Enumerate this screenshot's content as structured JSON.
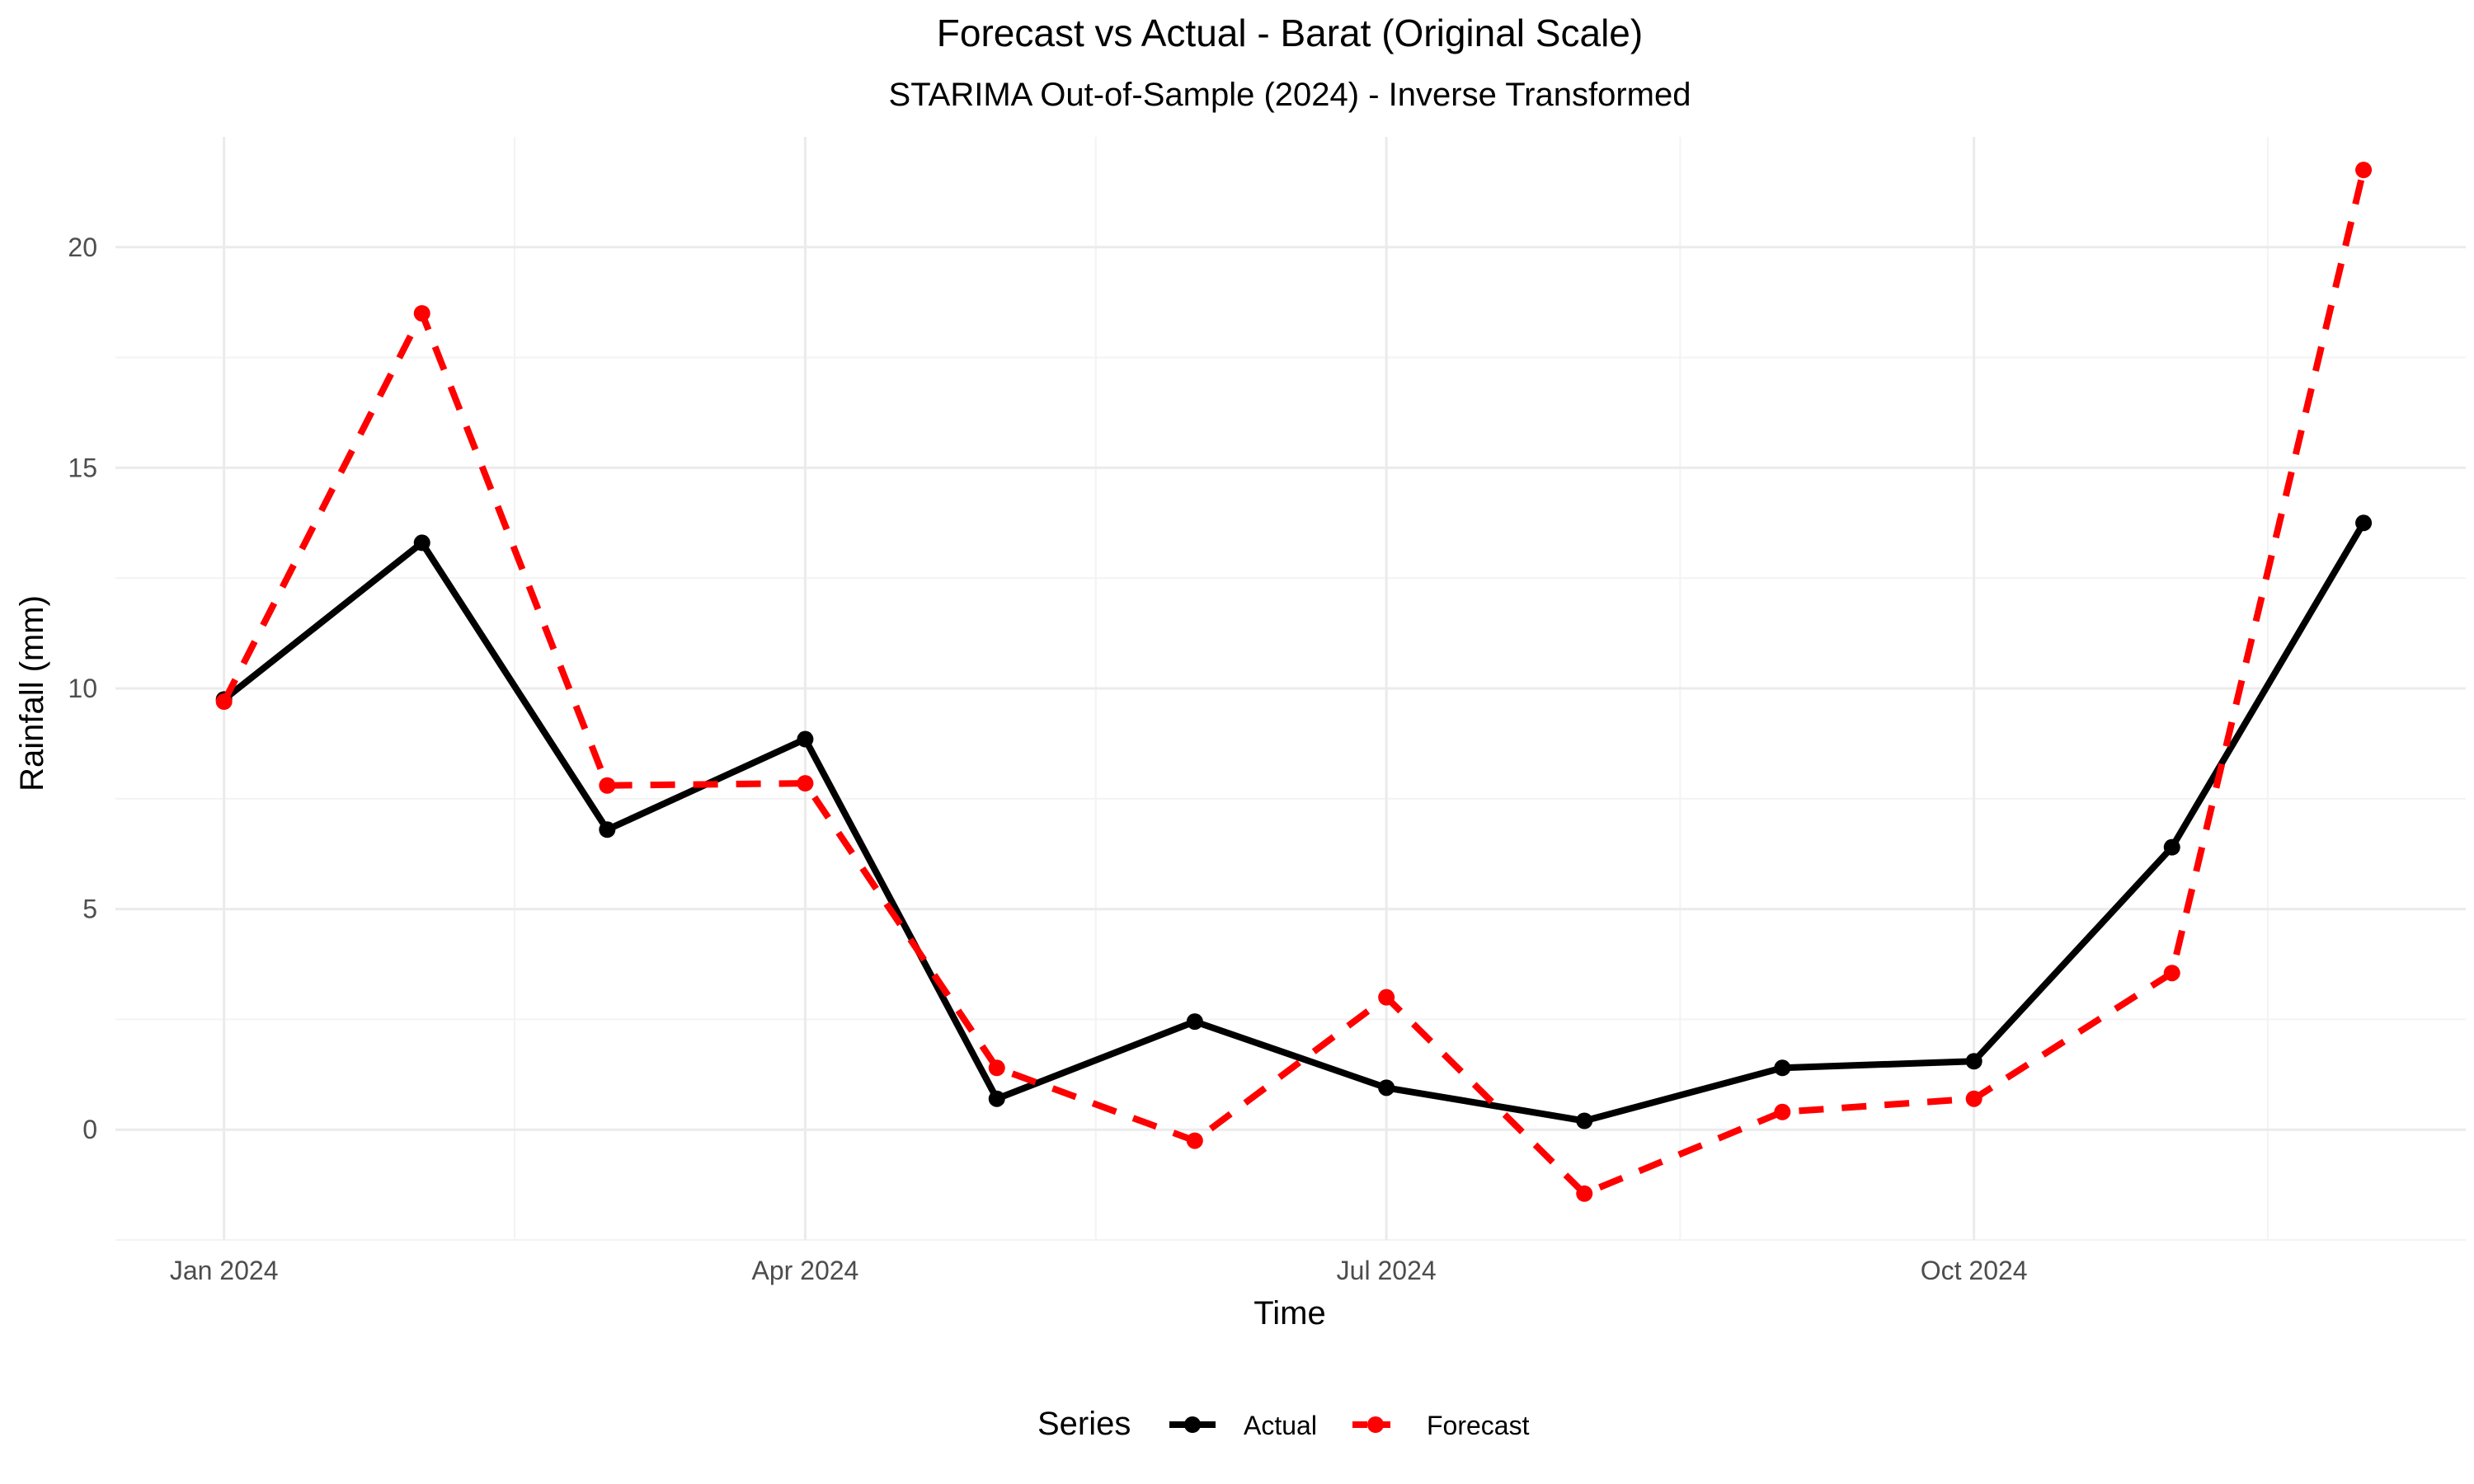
{
  "chart_data": {
    "type": "line",
    "title": "Forecast vs Actual - Barat (Original Scale)",
    "subtitle": "STARIMA Out-of-Sample (2024) - Inverse Transformed",
    "xlabel": "Time",
    "ylabel": "Rainfall (mm)",
    "x": [
      "2024-01-01",
      "2024-02-01",
      "2024-03-01",
      "2024-04-01",
      "2024-05-01",
      "2024-06-01",
      "2024-07-01",
      "2024-08-01",
      "2024-09-01",
      "2024-10-01",
      "2024-11-01",
      "2024-12-01"
    ],
    "x_ticks": [
      {
        "date": "2024-01-01",
        "label": "Jan 2024"
      },
      {
        "date": "2024-04-01",
        "label": "Apr 2024"
      },
      {
        "date": "2024-07-01",
        "label": "Jul 2024"
      },
      {
        "date": "2024-10-01",
        "label": "Oct 2024"
      }
    ],
    "xlim": [
      "2023-12-15",
      "2024-12-17"
    ],
    "ylim": [
      -2.5,
      22.5
    ],
    "y_ticks": [
      0,
      5,
      10,
      15,
      20
    ],
    "y_tick_labels": [
      "0",
      "5",
      "10",
      "15",
      "20"
    ],
    "grid": true,
    "legend_title": "Series",
    "legend_position": "bottom",
    "series": [
      {
        "name": "Actual",
        "color": "#000000",
        "line_style": "solid",
        "values": [
          9.75,
          13.3,
          6.8,
          8.85,
          0.7,
          2.45,
          0.95,
          0.2,
          1.4,
          1.55,
          6.4,
          13.75
        ]
      },
      {
        "name": "Forecast",
        "color": "#ff0000",
        "line_style": "dashed",
        "values": [
          9.7,
          18.5,
          7.8,
          7.85,
          1.4,
          -0.25,
          3.0,
          -1.45,
          0.4,
          0.7,
          3.55,
          21.75
        ]
      }
    ]
  }
}
